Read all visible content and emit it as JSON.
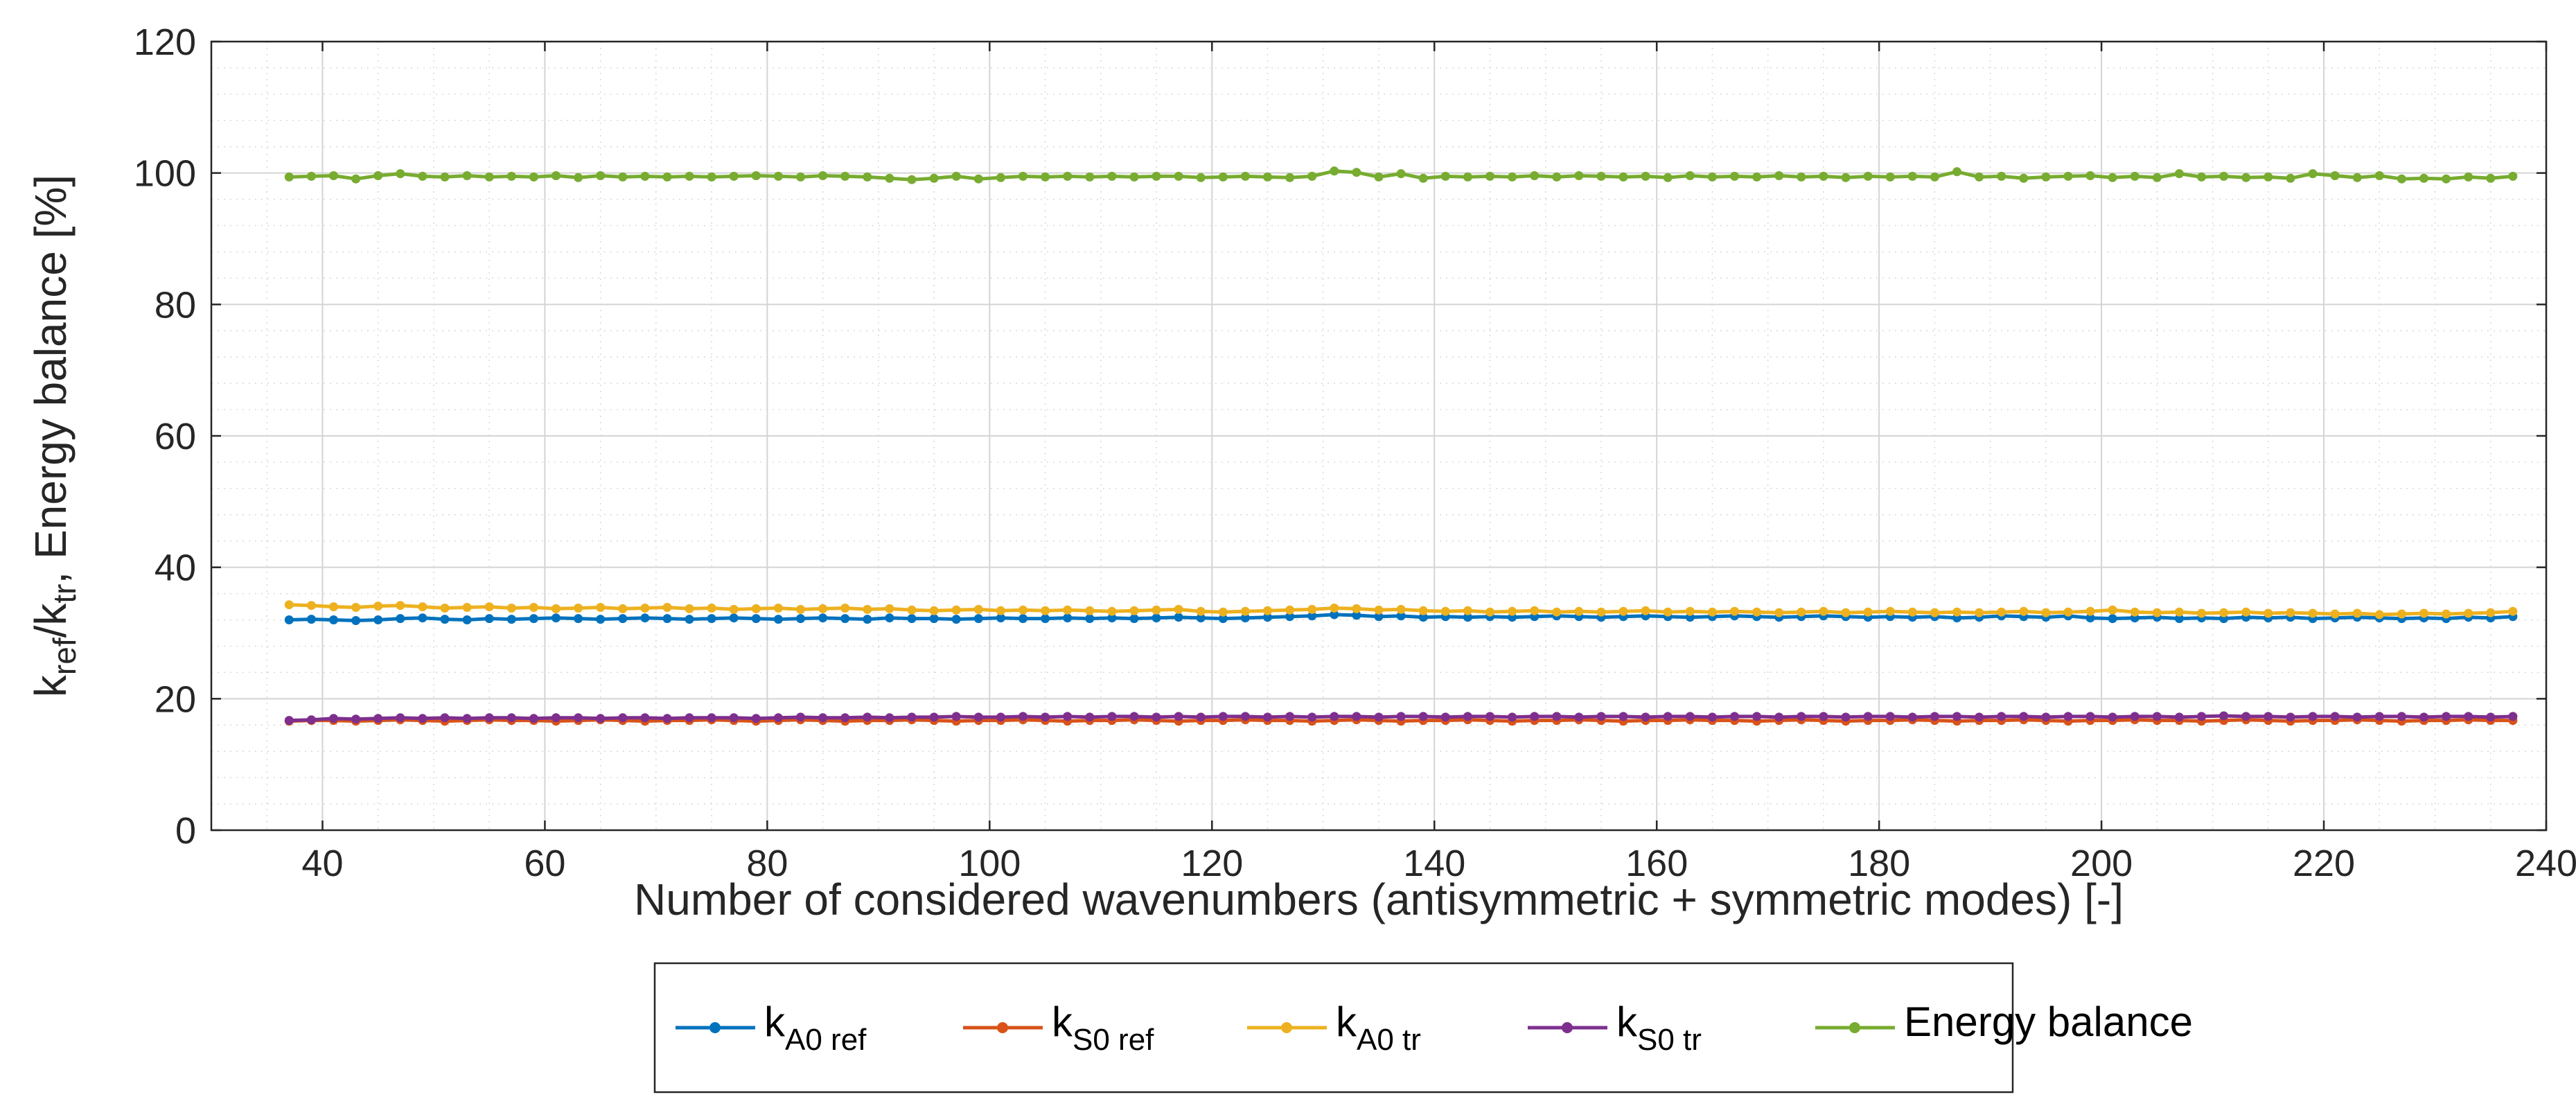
{
  "chart_data": {
    "type": "line",
    "title": "",
    "xlabel": "Number of considered wavenumbers (antisymmetric + symmetric modes) [-]",
    "ylabel": {
      "parts": [
        {
          "text": "k",
          "sub": false
        },
        {
          "text": "ref",
          "sub": true
        },
        {
          "text": "/k",
          "sub": false
        },
        {
          "text": "tr",
          "sub": true
        },
        {
          "text": ", Energy balance [%]",
          "sub": false
        }
      ]
    },
    "xlim": [
      30,
      240
    ],
    "ylim": [
      0,
      120
    ],
    "xticks": [
      "40",
      "60",
      "80",
      "100",
      "120",
      "140",
      "160",
      "180",
      "200",
      "220",
      "240"
    ],
    "xtick_values": [
      40,
      60,
      80,
      100,
      120,
      140,
      160,
      180,
      200,
      220,
      240
    ],
    "yticks": [
      "0",
      "20",
      "40",
      "60",
      "80",
      "100",
      "120"
    ],
    "ytick_values": [
      0,
      20,
      40,
      60,
      80,
      100,
      120
    ],
    "grid": true,
    "minor_grid": true,
    "legend_position": "bottom-center",
    "x_start": 37,
    "x_end": 237,
    "x_step": 2,
    "series": [
      {
        "name": "k A0 ref",
        "legend_main": "k",
        "legend_sub": "A0 ref",
        "color": "#0072BD",
        "values": [
          32.0,
          32.1,
          32.0,
          31.9,
          32.0,
          32.2,
          32.3,
          32.1,
          32.0,
          32.2,
          32.1,
          32.2,
          32.3,
          32.2,
          32.1,
          32.2,
          32.3,
          32.2,
          32.1,
          32.2,
          32.3,
          32.2,
          32.1,
          32.2,
          32.3,
          32.2,
          32.1,
          32.3,
          32.2,
          32.2,
          32.1,
          32.2,
          32.3,
          32.2,
          32.2,
          32.3,
          32.2,
          32.3,
          32.2,
          32.3,
          32.4,
          32.3,
          32.2,
          32.3,
          32.4,
          32.5,
          32.6,
          32.8,
          32.7,
          32.5,
          32.6,
          32.4,
          32.5,
          32.4,
          32.5,
          32.4,
          32.5,
          32.6,
          32.5,
          32.4,
          32.5,
          32.6,
          32.5,
          32.4,
          32.5,
          32.6,
          32.5,
          32.4,
          32.5,
          32.6,
          32.5,
          32.4,
          32.5,
          32.4,
          32.5,
          32.3,
          32.4,
          32.6,
          32.5,
          32.4,
          32.6,
          32.3,
          32.2,
          32.3,
          32.4,
          32.2,
          32.3,
          32.2,
          32.4,
          32.3,
          32.4,
          32.2,
          32.3,
          32.4,
          32.3,
          32.2,
          32.3,
          32.2,
          32.4,
          32.3,
          32.5
        ]
      },
      {
        "name": "k S0 ref",
        "legend_main": "k",
        "legend_sub": "S0 ref",
        "color": "#D95319",
        "values": [
          16.6,
          16.7,
          16.7,
          16.6,
          16.7,
          16.8,
          16.7,
          16.6,
          16.7,
          16.8,
          16.7,
          16.7,
          16.6,
          16.7,
          16.8,
          16.7,
          16.6,
          16.7,
          16.7,
          16.8,
          16.7,
          16.6,
          16.7,
          16.8,
          16.7,
          16.6,
          16.7,
          16.7,
          16.8,
          16.7,
          16.6,
          16.7,
          16.7,
          16.8,
          16.7,
          16.6,
          16.7,
          16.7,
          16.8,
          16.7,
          16.6,
          16.7,
          16.7,
          16.8,
          16.7,
          16.7,
          16.6,
          16.7,
          16.8,
          16.7,
          16.6,
          16.7,
          16.7,
          16.8,
          16.7,
          16.6,
          16.7,
          16.7,
          16.8,
          16.7,
          16.6,
          16.7,
          16.7,
          16.8,
          16.7,
          16.7,
          16.6,
          16.7,
          16.8,
          16.7,
          16.6,
          16.7,
          16.7,
          16.8,
          16.7,
          16.6,
          16.7,
          16.7,
          16.8,
          16.7,
          16.6,
          16.7,
          16.7,
          16.8,
          16.7,
          16.7,
          16.6,
          16.7,
          16.8,
          16.7,
          16.6,
          16.7,
          16.7,
          16.8,
          16.7,
          16.6,
          16.7,
          16.7,
          16.8,
          16.7,
          16.7
        ]
      },
      {
        "name": "k A0 tr",
        "legend_main": "k",
        "legend_sub": "A0 tr",
        "color": "#EDB120",
        "values": [
          34.3,
          34.2,
          34.0,
          33.9,
          34.1,
          34.2,
          34.0,
          33.8,
          33.9,
          34.0,
          33.8,
          33.9,
          33.7,
          33.8,
          33.9,
          33.7,
          33.8,
          33.9,
          33.7,
          33.8,
          33.6,
          33.7,
          33.8,
          33.6,
          33.7,
          33.8,
          33.6,
          33.7,
          33.5,
          33.4,
          33.5,
          33.6,
          33.4,
          33.5,
          33.4,
          33.5,
          33.4,
          33.3,
          33.4,
          33.5,
          33.6,
          33.3,
          33.2,
          33.3,
          33.4,
          33.5,
          33.6,
          33.8,
          33.7,
          33.5,
          33.6,
          33.4,
          33.3,
          33.4,
          33.2,
          33.3,
          33.4,
          33.2,
          33.3,
          33.2,
          33.3,
          33.4,
          33.2,
          33.3,
          33.2,
          33.3,
          33.2,
          33.1,
          33.2,
          33.3,
          33.1,
          33.2,
          33.3,
          33.2,
          33.1,
          33.2,
          33.1,
          33.2,
          33.3,
          33.1,
          33.2,
          33.3,
          33.5,
          33.2,
          33.1,
          33.2,
          33.0,
          33.1,
          33.2,
          33.0,
          33.1,
          33.0,
          32.9,
          33.0,
          32.8,
          32.9,
          33.0,
          32.9,
          33.0,
          33.1,
          33.3
        ]
      },
      {
        "name": "k S0 tr",
        "legend_main": "k",
        "legend_sub": "S0 tr",
        "color": "#7E2F8E",
        "values": [
          16.7,
          16.8,
          17.0,
          16.9,
          17.0,
          17.1,
          17.0,
          17.1,
          17.0,
          17.1,
          17.1,
          17.0,
          17.1,
          17.1,
          17.0,
          17.1,
          17.1,
          17.0,
          17.1,
          17.1,
          17.1,
          17.0,
          17.1,
          17.2,
          17.1,
          17.1,
          17.2,
          17.1,
          17.2,
          17.2,
          17.3,
          17.2,
          17.2,
          17.3,
          17.2,
          17.3,
          17.2,
          17.3,
          17.3,
          17.2,
          17.3,
          17.2,
          17.3,
          17.3,
          17.2,
          17.3,
          17.2,
          17.3,
          17.3,
          17.2,
          17.3,
          17.3,
          17.2,
          17.3,
          17.3,
          17.2,
          17.3,
          17.3,
          17.2,
          17.3,
          17.3,
          17.2,
          17.3,
          17.3,
          17.2,
          17.3,
          17.3,
          17.2,
          17.3,
          17.3,
          17.2,
          17.3,
          17.3,
          17.2,
          17.3,
          17.3,
          17.2,
          17.3,
          17.3,
          17.2,
          17.3,
          17.3,
          17.2,
          17.3,
          17.3,
          17.2,
          17.3,
          17.4,
          17.3,
          17.3,
          17.2,
          17.3,
          17.3,
          17.2,
          17.3,
          17.3,
          17.2,
          17.3,
          17.3,
          17.2,
          17.3
        ]
      },
      {
        "name": "Energy balance",
        "legend_main": "Energy balance",
        "legend_sub": "",
        "color": "#77AC30",
        "values": [
          99.4,
          99.5,
          99.6,
          99.1,
          99.6,
          99.9,
          99.5,
          99.4,
          99.6,
          99.4,
          99.5,
          99.4,
          99.6,
          99.3,
          99.6,
          99.4,
          99.5,
          99.4,
          99.5,
          99.4,
          99.5,
          99.6,
          99.5,
          99.4,
          99.6,
          99.5,
          99.4,
          99.2,
          99.0,
          99.2,
          99.5,
          99.1,
          99.3,
          99.5,
          99.4,
          99.5,
          99.4,
          99.5,
          99.4,
          99.5,
          99.5,
          99.3,
          99.4,
          99.5,
          99.4,
          99.3,
          99.5,
          100.3,
          100.1,
          99.4,
          99.9,
          99.2,
          99.5,
          99.4,
          99.5,
          99.4,
          99.6,
          99.4,
          99.6,
          99.5,
          99.4,
          99.5,
          99.3,
          99.6,
          99.4,
          99.5,
          99.4,
          99.6,
          99.4,
          99.5,
          99.3,
          99.5,
          99.4,
          99.5,
          99.4,
          100.2,
          99.4,
          99.5,
          99.2,
          99.4,
          99.5,
          99.6,
          99.3,
          99.5,
          99.3,
          99.9,
          99.4,
          99.5,
          99.3,
          99.4,
          99.2,
          99.9,
          99.6,
          99.3,
          99.6,
          99.1,
          99.2,
          99.1,
          99.4,
          99.2,
          99.5
        ]
      }
    ]
  }
}
